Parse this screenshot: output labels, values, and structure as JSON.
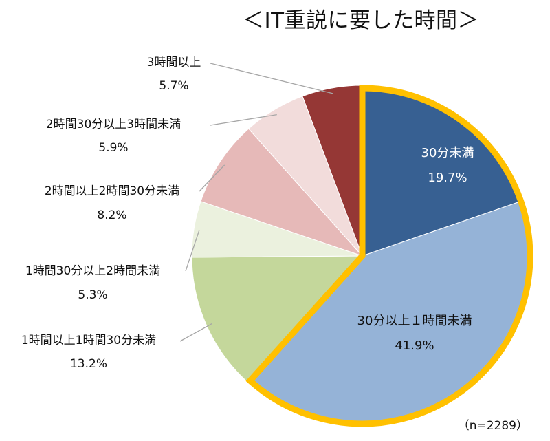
{
  "chart_data": {
    "type": "pie",
    "title": "＜IT重説に要した時間＞",
    "note": "（n=2289）",
    "slices": [
      {
        "label": "30分未満",
        "value_label": "19.7%",
        "value": 19.7,
        "color": "#376092",
        "text_color": "#ffffff"
      },
      {
        "label": "30分以上１時間未満",
        "value_label": "41.9%",
        "value": 41.9,
        "color": "#95B3D7",
        "text_color": "#111111"
      },
      {
        "label": "1時間以上1時間30分未満",
        "value_label": "13.2%",
        "value": 13.2,
        "color": "#C4D79B",
        "text_color": "#111111"
      },
      {
        "label": "1時間30分以上2時間未満",
        "value_label": "5.3%",
        "value": 5.3,
        "color": "#EBF1DE",
        "text_color": "#111111"
      },
      {
        "label": "2時間以上2時間30分未満",
        "value_label": "8.2%",
        "value": 8.2,
        "color": "#E6B9B8",
        "text_color": "#111111"
      },
      {
        "label": "2時間30分以上3時間未満",
        "value_label": "5.9%",
        "value": 5.9,
        "color": "#F2DCDB",
        "text_color": "#111111"
      },
      {
        "label": "3時間以上",
        "value_label": "5.7%",
        "value": 5.7,
        "color": "#953735",
        "text_color": "#111111"
      }
    ],
    "highlight_color": "#FFC000",
    "highlighted_slices": [
      0,
      1
    ],
    "leader_line_color": "#a6a6a6"
  }
}
